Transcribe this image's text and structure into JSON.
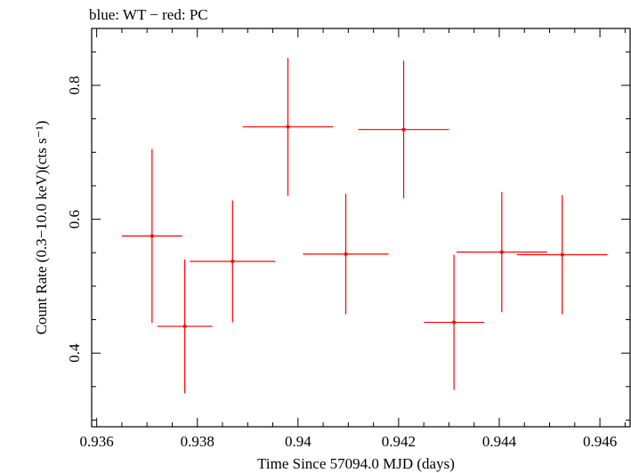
{
  "chart_data": {
    "type": "scatter",
    "title": "blue: WT − red: PC",
    "xlabel": "Time Since 57094.0 MJD (days)",
    "ylabel": "Count Rate (0.3−10.0 keV)(cts s⁻¹)",
    "xlim": [
      0.9359,
      0.9466
    ],
    "ylim": [
      0.29,
      0.885
    ],
    "xticks": [
      0.936,
      0.938,
      0.94,
      0.942,
      0.944,
      0.946
    ],
    "xtick_labels": [
      "0.936",
      "0.938",
      "0.94",
      "0.942",
      "0.944",
      "0.946"
    ],
    "xminor_step": 0.0005,
    "yticks": [
      0.4,
      0.6,
      0.8
    ],
    "ytick_labels": [
      "0.4",
      "0.6",
      "0.8"
    ],
    "yminor_step": 0.05,
    "grid": false,
    "series": [
      {
        "color": "#ff0000",
        "points": [
          {
            "x": 0.9371,
            "xerr": 0.0006,
            "y": 0.575,
            "yerr": 0.13
          },
          {
            "x": 0.93775,
            "xerr": 0.00055,
            "y": 0.44,
            "yerr": 0.1
          },
          {
            "x": 0.9387,
            "xerr": 0.00085,
            "y": 0.537,
            "yerr": 0.091
          },
          {
            "x": 0.9398,
            "xerr": 0.0009,
            "y": 0.738,
            "yerr": 0.103
          },
          {
            "x": 0.94095,
            "xerr": 0.00085,
            "y": 0.548,
            "yerr": 0.09
          },
          {
            "x": 0.9421,
            "xerr": 0.0009,
            "y": 0.734,
            "yerr": 0.103
          },
          {
            "x": 0.9431,
            "xerr": 0.0006,
            "y": 0.446,
            "yerr": 0.101
          },
          {
            "x": 0.94405,
            "xerr": 0.0009,
            "y": 0.551,
            "yerr": 0.09
          },
          {
            "x": 0.94525,
            "xerr": 0.0009,
            "y": 0.547,
            "yerr": 0.089
          }
        ]
      }
    ]
  }
}
